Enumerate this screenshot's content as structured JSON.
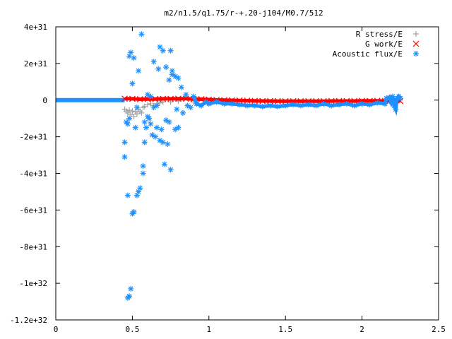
{
  "chart_data": {
    "type": "scatter",
    "title": "m2/n1.5/q1.75/r-+.20-j104/M0.7/512",
    "xlabel": "",
    "ylabel": "",
    "xlim": [
      0,
      2.5
    ],
    "ylim": [
      -1.2e+32,
      4e+31
    ],
    "x_ticks": [
      {
        "value": 0,
        "label": "0"
      },
      {
        "value": 0.5,
        "label": "0.5"
      },
      {
        "value": 1,
        "label": "1"
      },
      {
        "value": 1.5,
        "label": "1.5"
      },
      {
        "value": 2,
        "label": "2"
      },
      {
        "value": 2.5,
        "label": "2.5"
      }
    ],
    "y_ticks": [
      {
        "value": 4e+31,
        "label": "4e+31"
      },
      {
        "value": 2e+31,
        "label": "2e+31"
      },
      {
        "value": 0,
        "label": "0"
      },
      {
        "value": -2e+31,
        "label": "-2e+31"
      },
      {
        "value": -4e+31,
        "label": "-4e+31"
      },
      {
        "value": -6e+31,
        "label": "-6e+31"
      },
      {
        "value": -8e+31,
        "label": "-8e+31"
      },
      {
        "value": -1e+32,
        "label": "-1e+32"
      },
      {
        "value": -1.2e+32,
        "label": "-1.2e+32"
      }
    ],
    "grid": false,
    "legend_position": "top-right",
    "series": [
      {
        "name": "R stress/E",
        "marker": "plus",
        "color": "#a0a0a0",
        "points": [
          [
            0.45,
            -5e+30
          ],
          [
            0.46,
            -6e+30
          ],
          [
            0.47,
            -7e+30
          ],
          [
            0.48,
            -5.5e+30
          ],
          [
            0.49,
            -8e+30
          ],
          [
            0.5,
            -6e+30
          ],
          [
            0.51,
            -9e+30
          ],
          [
            0.52,
            -6.5e+30
          ],
          [
            0.53,
            -7.5e+30
          ],
          [
            0.54,
            -5e+30
          ],
          [
            0.55,
            -6e+30
          ],
          [
            0.56,
            -7e+30
          ],
          [
            0.57,
            -4e+30
          ],
          [
            0.58,
            -3.5e+30
          ],
          [
            0.6,
            -2.5e+30
          ],
          [
            0.62,
            -2e+30
          ],
          [
            0.64,
            -3e+30
          ],
          [
            0.66,
            -2e+30
          ],
          [
            0.68,
            -1.5e+30
          ],
          [
            0.7,
            -1e+30
          ],
          [
            0.75,
            -1e+30
          ],
          [
            0.8,
            -5e+29
          ],
          [
            0.85,
            2e+30
          ],
          [
            0.9,
            -1e+30
          ]
        ]
      },
      {
        "name": "G work/E",
        "marker": "cross",
        "color": "#ff0000",
        "points": [
          [
            0.45,
            8e+29
          ],
          [
            0.5,
            7e+29
          ],
          [
            0.55,
            5e+29
          ],
          [
            0.6,
            6e+29
          ],
          [
            0.65,
            6e+29
          ],
          [
            0.7,
            7e+29
          ],
          [
            0.75,
            7e+29
          ],
          [
            0.8,
            8e+29
          ],
          [
            0.85,
            8e+29
          ],
          [
            0.9,
            6e+29
          ],
          [
            0.95,
            5e+29
          ],
          [
            1.0,
            3e+29
          ],
          [
            1.05,
            1e+29
          ],
          [
            1.1,
            0
          ],
          [
            1.15,
            -1e+29
          ],
          [
            1.2,
            -2e+29
          ],
          [
            1.25,
            -3e+29
          ],
          [
            1.3,
            -4e+29
          ],
          [
            1.35,
            -5e+29
          ],
          [
            1.4,
            -5e+29
          ],
          [
            1.45,
            -6e+29
          ],
          [
            1.5,
            -6e+29
          ],
          [
            1.55,
            -6e+29
          ],
          [
            1.6,
            -6e+29
          ],
          [
            1.65,
            -6e+29
          ],
          [
            1.7,
            -6e+29
          ],
          [
            1.75,
            -6e+29
          ],
          [
            1.8,
            -5e+29
          ],
          [
            1.85,
            -5e+29
          ],
          [
            1.9,
            -5e+29
          ],
          [
            1.95,
            -5e+29
          ],
          [
            2.0,
            -4e+29
          ],
          [
            2.05,
            -4e+29
          ],
          [
            2.1,
            -4e+29
          ],
          [
            2.15,
            -5e+29
          ],
          [
            2.2,
            -6e+29
          ],
          [
            2.25,
            -5e+29
          ]
        ]
      },
      {
        "name": "Acoustic flux/E",
        "marker": "star",
        "color": "#1e90ff",
        "points": [
          [
            0.45,
            -2.3e+31
          ],
          [
            0.45,
            -3.1e+31
          ],
          [
            0.46,
            -1.2e+31
          ],
          [
            0.47,
            -5.2e+31
          ],
          [
            0.47,
            -1.3e+31
          ],
          [
            0.47,
            -1.08e+32
          ],
          [
            0.48,
            -1.07e+32
          ],
          [
            0.48,
            -1e+31
          ],
          [
            0.48,
            2.4e+31
          ],
          [
            0.49,
            2.6e+31
          ],
          [
            0.49,
            -1.03e+32
          ],
          [
            0.5,
            -6.2e+31
          ],
          [
            0.5,
            9e+30
          ],
          [
            0.51,
            -6.1e+31
          ],
          [
            0.51,
            2.3e+31
          ],
          [
            0.52,
            -1.5e+31
          ],
          [
            0.53,
            -5.2e+31
          ],
          [
            0.53,
            -4e+30
          ],
          [
            0.54,
            -5e+31
          ],
          [
            0.54,
            1.6e+31
          ],
          [
            0.55,
            -4.8e+31
          ],
          [
            0.56,
            3.6e+31
          ],
          [
            0.57,
            -4e+31
          ],
          [
            0.57,
            -3.6e+31
          ],
          [
            0.58,
            -2.3e+31
          ],
          [
            0.58,
            -1.2e+31
          ],
          [
            0.59,
            -1.5e+31
          ],
          [
            0.6,
            3e+30
          ],
          [
            0.6,
            -9e+30
          ],
          [
            0.61,
            -1e+31
          ],
          [
            0.62,
            -1.3e+31
          ],
          [
            0.62,
            2e+30
          ],
          [
            0.63,
            -1.9e+31
          ],
          [
            0.64,
            2.1e+31
          ],
          [
            0.64,
            -4e+30
          ],
          [
            0.65,
            -2e+31
          ],
          [
            0.66,
            -3e+30
          ],
          [
            0.66,
            -1.5e+31
          ],
          [
            0.67,
            1.7e+31
          ],
          [
            0.68,
            -2.2e+31
          ],
          [
            0.68,
            2.9e+31
          ],
          [
            0.69,
            -1.6e+31
          ],
          [
            0.7,
            -2.3e+31
          ],
          [
            0.7,
            2.7e+31
          ],
          [
            0.71,
            -3.5e+31
          ],
          [
            0.72,
            -1.1e+31
          ],
          [
            0.72,
            1.8e+31
          ],
          [
            0.73,
            -2.4e+31
          ],
          [
            0.74,
            1.1e+31
          ],
          [
            0.74,
            -1.2e+31
          ],
          [
            0.75,
            -3.8e+31
          ],
          [
            0.75,
            2.7e+31
          ],
          [
            0.76,
            1.4e+31
          ],
          [
            0.76,
            1.6e+31
          ],
          [
            0.78,
            -1.6e+31
          ],
          [
            0.78,
            1.3e+31
          ],
          [
            0.79,
            -5e+30
          ],
          [
            0.8,
            -1.5e+31
          ],
          [
            0.8,
            1.2e+31
          ],
          [
            0.82,
            7e+30
          ],
          [
            0.83,
            -7e+30
          ],
          [
            0.85,
            3e+30
          ],
          [
            0.86,
            -3e+30
          ],
          [
            0.88,
            -4e+30
          ],
          [
            0.9,
            2e+30
          ],
          [
            0.92,
            -2e+30
          ],
          [
            0.95,
            -3e+30
          ],
          [
            0.98,
            -1e+30
          ],
          [
            1.0,
            -2e+30
          ],
          [
            1.05,
            -1e+30
          ],
          [
            1.1,
            -2e+30
          ],
          [
            1.15,
            -2e+30
          ],
          [
            1.2,
            -2.5e+30
          ],
          [
            1.25,
            -3e+30
          ],
          [
            1.3,
            -3e+30
          ],
          [
            1.35,
            -3.5e+30
          ],
          [
            1.4,
            -3e+30
          ],
          [
            1.45,
            -3.5e+30
          ],
          [
            1.5,
            -3e+30
          ],
          [
            1.55,
            -2.5e+30
          ],
          [
            1.6,
            -3e+30
          ],
          [
            1.65,
            -2.5e+30
          ],
          [
            1.7,
            -3e+30
          ],
          [
            1.75,
            -2e+30
          ],
          [
            1.8,
            -3e+30
          ],
          [
            1.85,
            -2.5e+30
          ],
          [
            1.9,
            -2e+30
          ],
          [
            1.95,
            -3e+30
          ],
          [
            2.0,
            -2e+30
          ],
          [
            2.05,
            -2.5e+30
          ],
          [
            2.1,
            -1.5e+30
          ],
          [
            2.15,
            -2e+30
          ],
          [
            2.16,
            1e+30
          ],
          [
            2.18,
            1.5e+30
          ],
          [
            2.19,
            -1e+30
          ],
          [
            2.2,
            2e+30
          ],
          [
            2.21,
            -3e+30
          ],
          [
            2.22,
            -5e+30
          ],
          [
            2.23,
            1e+30
          ],
          [
            2.24,
            2e+30
          ],
          [
            2.25,
            1e+30
          ]
        ]
      }
    ]
  }
}
